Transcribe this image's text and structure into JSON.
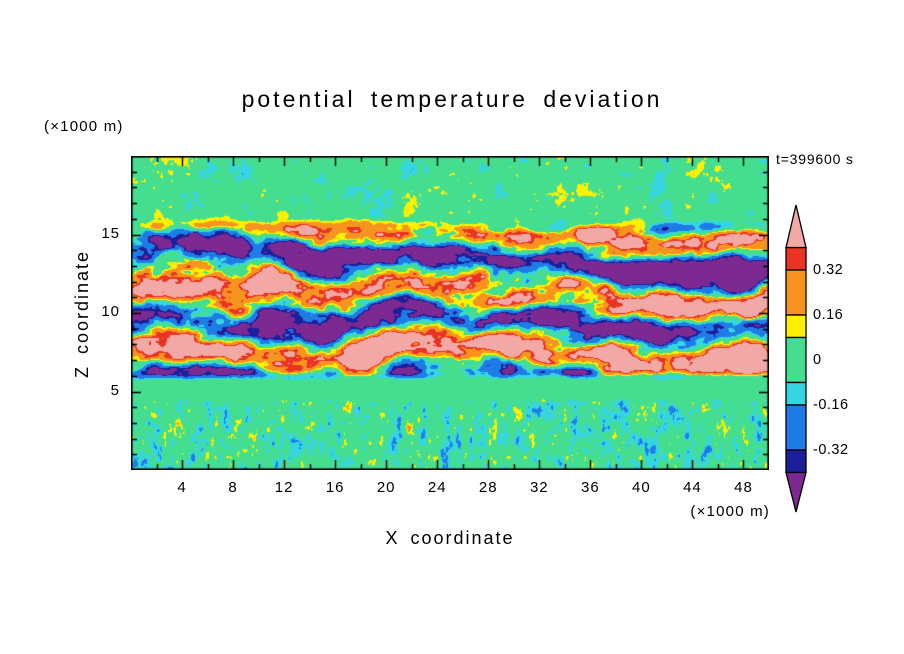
{
  "page": {
    "background": "#ffffff"
  },
  "chart_data": {
    "type": "heatmap",
    "title": "potential temperature deviation",
    "xlabel": "X coordinate",
    "ylabel": "Z coordinate",
    "x_unit_label": "(×1000 m)",
    "y_unit_label": "(×1000 m)",
    "time_label": "t=399600 s",
    "xlim": [
      0,
      50
    ],
    "ylim": [
      0,
      20
    ],
    "x_ticks": [
      4,
      8,
      12,
      16,
      20,
      24,
      28,
      32,
      36,
      40,
      44,
      48
    ],
    "x_minor_tick_step": 2,
    "y_ticks": [
      5,
      10,
      15
    ],
    "y_minor_tick_step": 1,
    "grid": false,
    "legend_position": "right-colorbar",
    "colorbar": {
      "labels": [
        "0.32",
        "0.16",
        "0",
        "-0.16",
        "-0.32"
      ],
      "label_values": [
        0.32,
        0.16,
        0,
        -0.16,
        -0.32
      ],
      "levels": [
        -0.4,
        -0.32,
        -0.16,
        -0.08,
        0.08,
        0.16,
        0.32,
        0.4
      ],
      "colors_low_to_high": [
        "#7c2a91",
        "#1c1f9b",
        "#1f7ce6",
        "#35d6e2",
        "#45de8f",
        "#fdf000",
        "#f79420",
        "#eb3323",
        "#f2a8a5"
      ],
      "open_ended": true
    },
    "field_description": "Turbulent potential temperature deviation field: quiet green region above z≈16 km with small yellow/cyan speckles; strongly banded turbulence with large horizontally elongated pink (positive) and purple (negative) anomalies between z≈6 and z≈15.5 km rimmed by red/orange/yellow and navy/blue/cyan contours; thin quiet green band near z≈5 km; fine-grained cyan/green speckled turbulence with small orange, yellow, blue, navy and purple patches below z≈4.5 km."
  }
}
